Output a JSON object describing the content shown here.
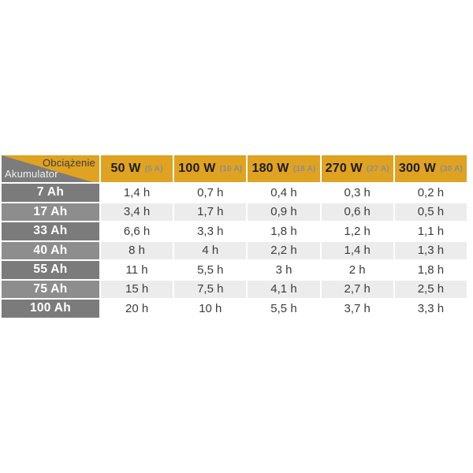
{
  "colors": {
    "gold": "#dfa321",
    "corner-gray": "#7c7c7c",
    "row-dark": "#7b7b7b",
    "row-light": "#8d8d8d",
    "zebra": "#ececec",
    "text-dark": "#3c3c3c"
  },
  "chart_data": {
    "type": "table",
    "corner": {
      "top": "Obciążenie",
      "bottom": "Akumulator"
    },
    "columns": [
      {
        "power": "50 W",
        "current": "(5 A)"
      },
      {
        "power": "100 W",
        "current": "(10 A)"
      },
      {
        "power": "180 W",
        "current": "(18 A)"
      },
      {
        "power": "270 W",
        "current": "(27 A)"
      },
      {
        "power": "300 W",
        "current": "(30 A)"
      }
    ],
    "rows": [
      {
        "battery": "7 Ah",
        "values": [
          "1,4 h",
          "0,7 h",
          "0,4 h",
          "0,3 h",
          "0,2 h"
        ]
      },
      {
        "battery": "17 Ah",
        "values": [
          "3,4 h",
          "1,7 h",
          "0,9 h",
          "0,6 h",
          "0,5 h"
        ]
      },
      {
        "battery": "33 Ah",
        "values": [
          "6,6 h",
          "3,3 h",
          "1,8 h",
          "1,2 h",
          "1,1 h"
        ]
      },
      {
        "battery": "40 Ah",
        "values": [
          "8 h",
          "4 h",
          "2,2 h",
          "1,4 h",
          "1,3 h"
        ]
      },
      {
        "battery": "55 Ah",
        "values": [
          "11 h",
          "5,5 h",
          "3 h",
          "2 h",
          "1,8 h"
        ]
      },
      {
        "battery": "75 Ah",
        "values": [
          "15 h",
          "7,5 h",
          "4,1 h",
          "2,7 h",
          "2,5 h"
        ]
      },
      {
        "battery": "100 Ah",
        "values": [
          "20 h",
          "10 h",
          "5,5 h",
          "3,7 h",
          "3,3 h"
        ]
      }
    ]
  }
}
